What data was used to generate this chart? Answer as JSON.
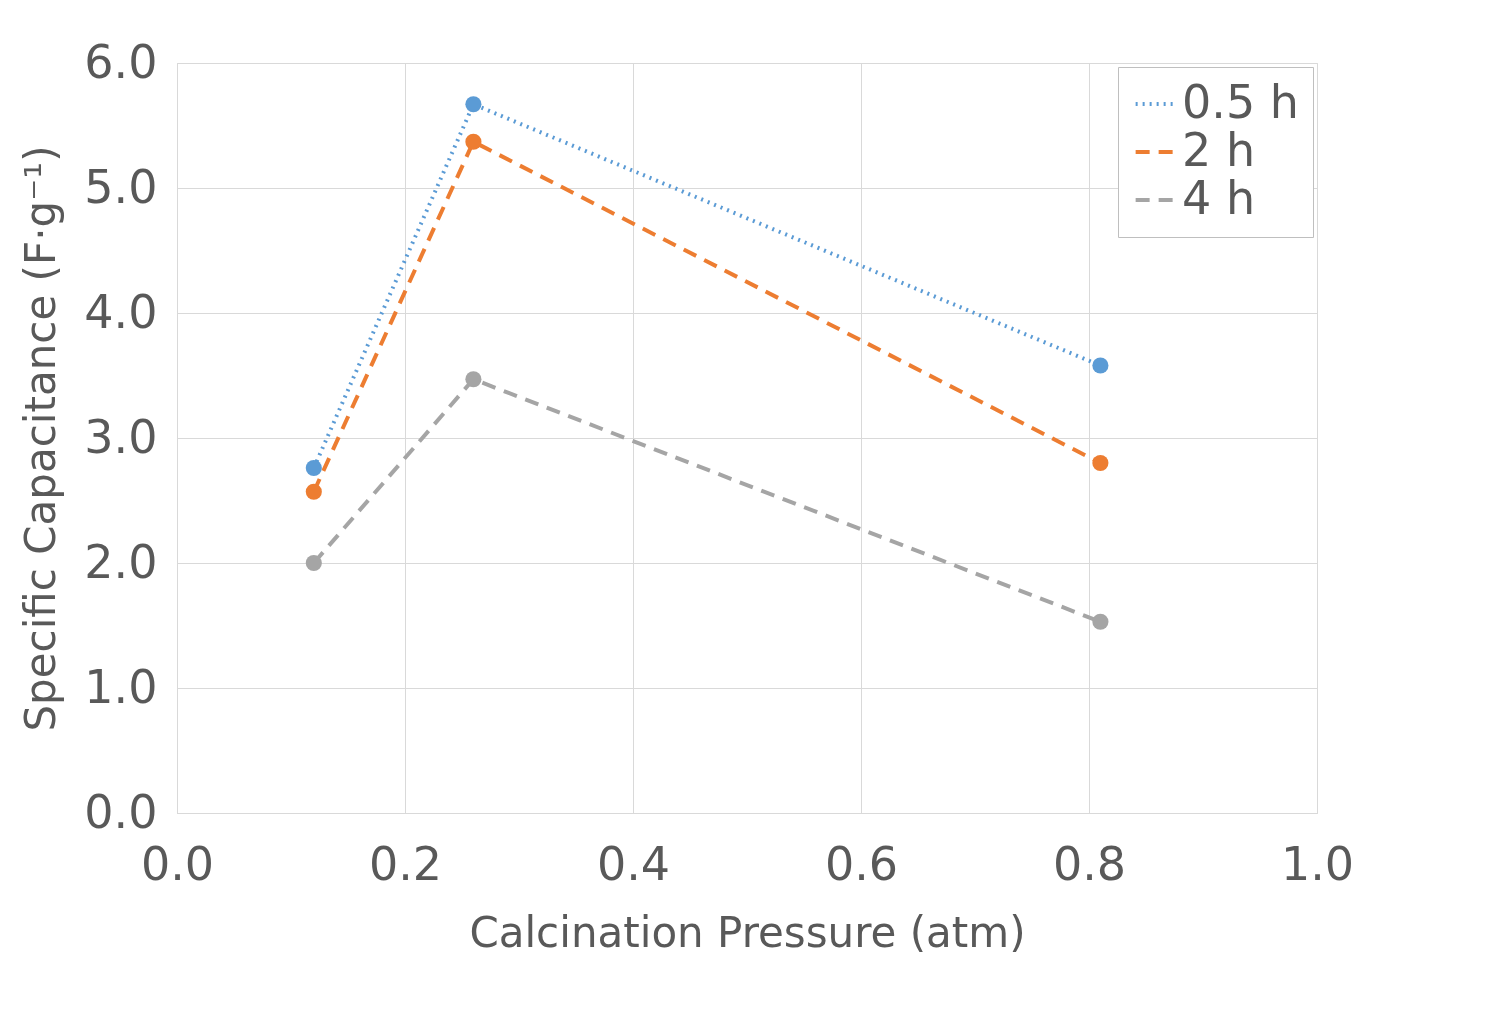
{
  "chart_data": {
    "type": "line",
    "xlabel": "Calcination Pressure (atm)",
    "ylabel": "Specific Capacitance (F·g⁻¹)",
    "x": [
      0.12,
      0.26,
      0.81
    ],
    "series": [
      {
        "name": "0.5 h",
        "color": "#5b9bd5",
        "line_style": "dotted",
        "values": [
          2.76,
          5.67,
          3.58
        ]
      },
      {
        "name": "2 h",
        "color": "#ed7d31",
        "line_style": "dashed",
        "values": [
          2.57,
          5.37,
          2.8
        ]
      },
      {
        "name": "4 h",
        "color": "#a5a5a5",
        "line_style": "dashed",
        "values": [
          2.0,
          3.47,
          1.53
        ]
      }
    ],
    "xlim": [
      0,
      1
    ],
    "ylim": [
      0,
      6
    ],
    "xticks": [
      {
        "value": 0,
        "label": "0.0"
      },
      0.2,
      0.4,
      0.6,
      0.8,
      {
        "value": 1,
        "label": "1.0"
      }
    ],
    "yticks": [
      {
        "value": 0,
        "label": "0.0"
      },
      {
        "value": 1,
        "label": "1.0"
      },
      {
        "value": 2,
        "label": "2.0"
      },
      {
        "value": 3,
        "label": "3.0"
      },
      {
        "value": 4,
        "label": "4.0"
      },
      {
        "value": 5,
        "label": "5.0"
      },
      {
        "value": 6,
        "label": "6.0"
      }
    ],
    "grid": true,
    "legend": "top right",
    "marker": "circle"
  }
}
